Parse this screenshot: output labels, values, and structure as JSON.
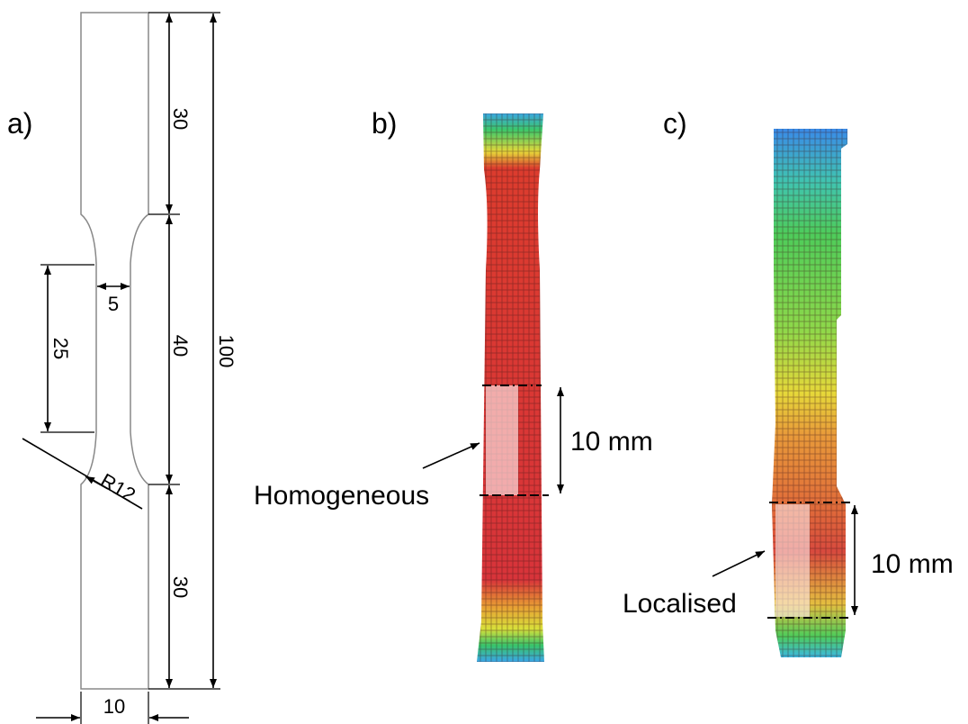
{
  "panels": [
    {
      "label": "a)",
      "dimensions": {
        "top_grip": "30",
        "gauge": "40",
        "bottom_grip": "30",
        "total": "100",
        "parallel": "25",
        "gauge_width": "5",
        "grip_width": "10",
        "radius": "R12"
      }
    },
    {
      "label": "b)",
      "gauge_length": "10 mm",
      "annotation": "Homogeneous"
    },
    {
      "label": "c)",
      "gauge_length": "10 mm",
      "annotation": "Localised"
    }
  ]
}
